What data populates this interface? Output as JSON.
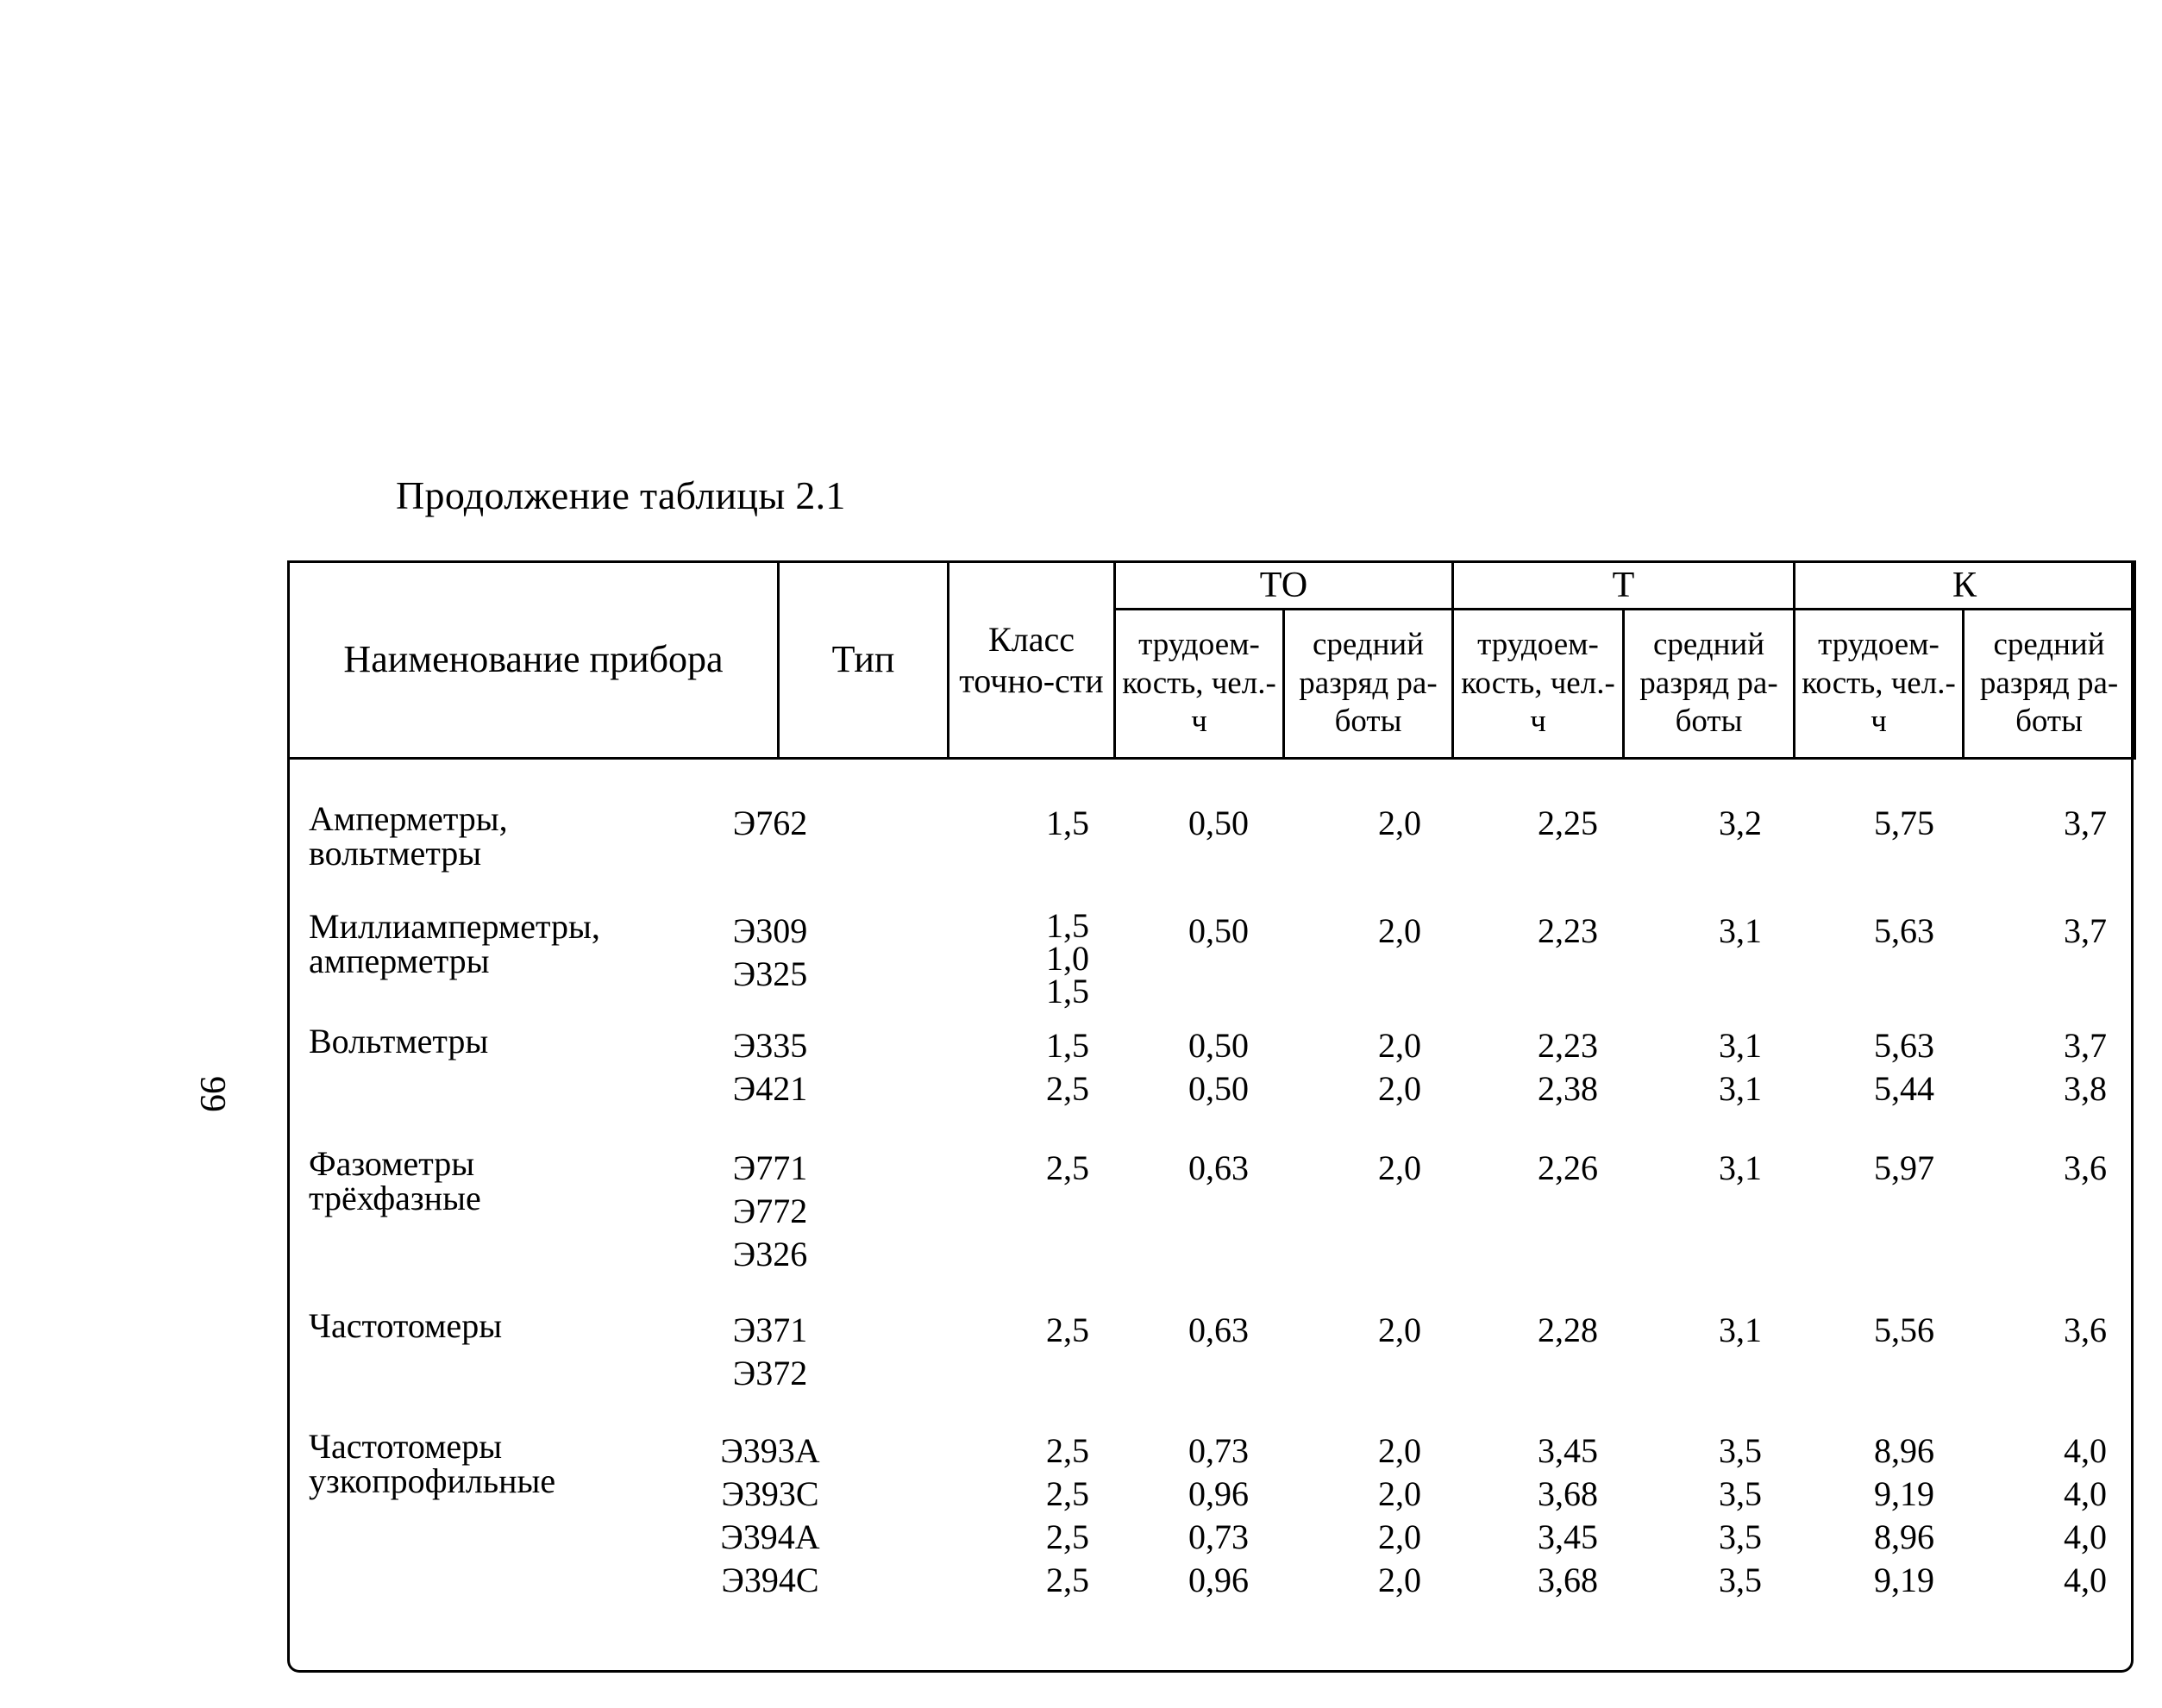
{
  "caption": "Продолжение таблицы 2.1",
  "page_number": "99",
  "header": {
    "name": "Наименование прибора",
    "type": "Тип",
    "class": "Класс точно-сти",
    "group_to": "ТО",
    "group_t": "Т",
    "group_k": "К",
    "labor": "трудоем-кость, чел.-ч",
    "grade": "средний разряд ра-боты"
  },
  "rows": [
    {
      "name": [
        "Амперметры,",
        "вольтметры"
      ],
      "types": [
        "Э762"
      ],
      "class": [
        "1,5"
      ],
      "to_labor": [
        "0,50"
      ],
      "to_grade": [
        "2,0"
      ],
      "t_labor": [
        "2,25"
      ],
      "t_grade": [
        "3,2"
      ],
      "k_labor": [
        "5,75"
      ],
      "k_grade": [
        "3,7"
      ]
    },
    {
      "name": [
        "Миллиамперметры,",
        "амперметры"
      ],
      "types": [
        "Э309",
        "Э325"
      ],
      "class": [
        "1,5",
        "1,0",
        "1,5"
      ],
      "to_labor": [
        "0,50"
      ],
      "to_grade": [
        "2,0"
      ],
      "t_labor": [
        "2,23"
      ],
      "t_grade": [
        "3,1"
      ],
      "k_labor": [
        "5,63"
      ],
      "k_grade": [
        "3,7"
      ]
    },
    {
      "name": [
        "Вольтметры"
      ],
      "types": [
        "Э335",
        "Э421"
      ],
      "class": [
        "1,5",
        "2,5"
      ],
      "to_labor": [
        "0,50",
        "0,50"
      ],
      "to_grade": [
        "2,0",
        "2,0"
      ],
      "t_labor": [
        "2,23",
        "2,38"
      ],
      "t_grade": [
        "3,1",
        "3,1"
      ],
      "k_labor": [
        "5,63",
        "5,44"
      ],
      "k_grade": [
        "3,7",
        "3,8"
      ]
    },
    {
      "name": [
        "Фазометры",
        "трёхфазные"
      ],
      "types": [
        "Э771",
        "Э772",
        "Э326"
      ],
      "class": [
        "2,5"
      ],
      "to_labor": [
        "0,63"
      ],
      "to_grade": [
        "2,0"
      ],
      "t_labor": [
        "2,26"
      ],
      "t_grade": [
        "3,1"
      ],
      "k_labor": [
        "5,97"
      ],
      "k_grade": [
        "3,6"
      ]
    },
    {
      "name": [
        "Частотомеры"
      ],
      "types": [
        "Э371",
        "Э372"
      ],
      "class": [
        "2,5"
      ],
      "to_labor": [
        "0,63"
      ],
      "to_grade": [
        "2,0"
      ],
      "t_labor": [
        "2,28"
      ],
      "t_grade": [
        "3,1"
      ],
      "k_labor": [
        "5,56"
      ],
      "k_grade": [
        "3,6"
      ]
    },
    {
      "name": [
        "Частотомеры",
        "узкопрофильные"
      ],
      "types": [
        "Э393А",
        "Э393С",
        "Э394А",
        "Э394С"
      ],
      "class": [
        "2,5",
        "2,5",
        "2,5",
        "2,5"
      ],
      "to_labor": [
        "0,73",
        "0,96",
        "0,73",
        "0,96"
      ],
      "to_grade": [
        "2,0",
        "2,0",
        "2,0",
        "2,0"
      ],
      "t_labor": [
        "3,45",
        "3,68",
        "3,45",
        "3,68"
      ],
      "t_grade": [
        "3,5",
        "3,5",
        "3,5",
        "3,5"
      ],
      "k_labor": [
        "8,96",
        "9,19",
        "8,96",
        "9,19"
      ],
      "k_grade": [
        "4,0",
        "4,0",
        "4,0",
        "4,0"
      ]
    }
  ]
}
